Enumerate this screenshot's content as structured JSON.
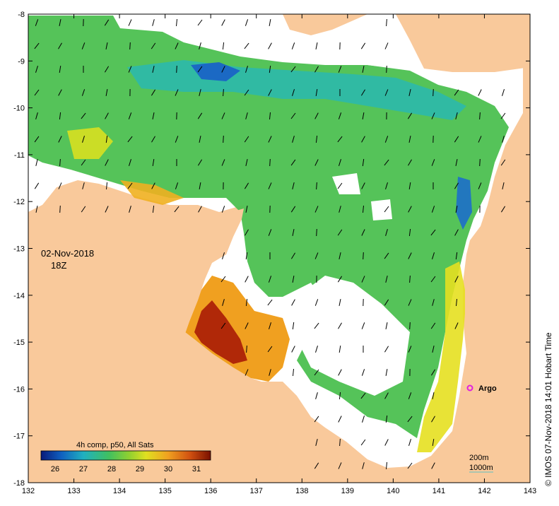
{
  "map": {
    "date": "02-Nov-2018",
    "time": "18Z",
    "product": "4h comp, p50, All Sats",
    "credit": "© IMOS 07-Nov-2018 14:01 Hobart Time",
    "argo_label": "Argo",
    "scale_labels": [
      "200m",
      "1000m"
    ],
    "x_ticks": [
      "132",
      "133",
      "134",
      "135",
      "136",
      "137",
      "138",
      "139",
      "140",
      "141",
      "142",
      "143"
    ],
    "y_ticks": [
      "-8",
      "-9",
      "-10",
      "-11",
      "-12",
      "-13",
      "-14",
      "-15",
      "-16",
      "-17",
      "-18"
    ],
    "colorbar": {
      "ticks": [
        "26",
        "27",
        "28",
        "29",
        "30",
        "31"
      ],
      "stops": [
        "#0a1a7a",
        "#1060c0",
        "#20b0c0",
        "#40c060",
        "#90d030",
        "#e0e020",
        "#f0a020",
        "#d05010",
        "#7a1000"
      ]
    },
    "colors": {
      "land": "#f9c99b",
      "cloud": "#ffffff",
      "argo": "#e020e0"
    }
  }
}
